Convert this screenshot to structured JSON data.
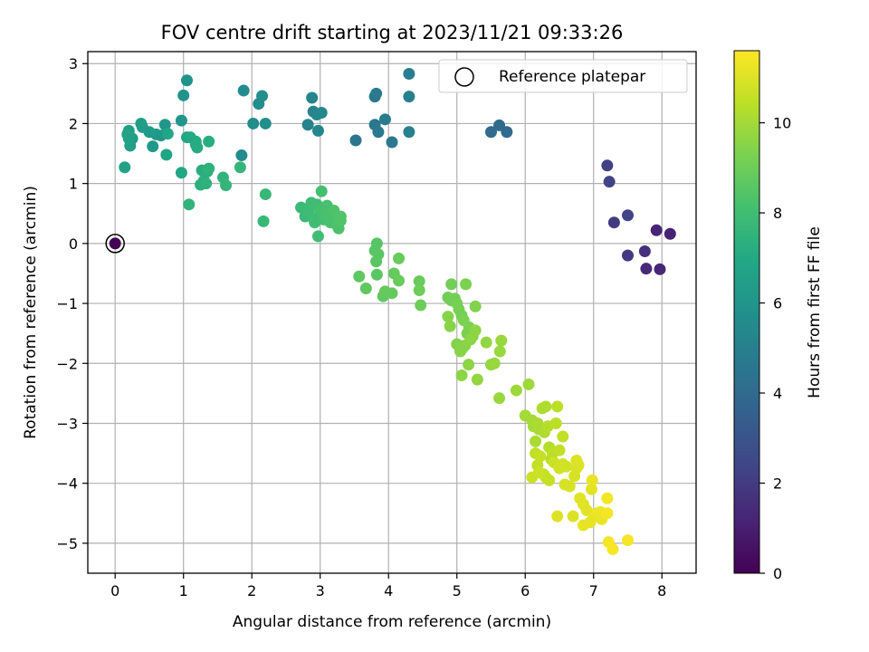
{
  "chart_data": {
    "type": "scatter",
    "title": "FOV centre drift starting at 2023/11/21 09:33:26",
    "xlabel": "Angular distance from reference (arcmin)",
    "ylabel": "Rotation from reference (arcmin)",
    "xlim": [
      -0.4,
      8.5
    ],
    "ylim": [
      -5.5,
      3.2
    ],
    "xticks": [
      0,
      1,
      2,
      3,
      4,
      5,
      6,
      7,
      8
    ],
    "xtick_labels": [
      "0",
      "1",
      "2",
      "3",
      "4",
      "5",
      "6",
      "7",
      "8"
    ],
    "yticks": [
      3,
      2,
      1,
      0,
      -1,
      -2,
      -3,
      -4,
      -5
    ],
    "ytick_labels": [
      "3",
      "2",
      "1",
      "0",
      "−1",
      "−2",
      "−3",
      "−4",
      "−5"
    ],
    "grid": true,
    "legend": {
      "label": "Reference platepar",
      "placement": "upper-right"
    },
    "reference_point": {
      "x": 0.0,
      "y": 0.0,
      "c": 0.0
    },
    "colorbar": {
      "label": "Hours from first FF file",
      "colormap": "viridis",
      "range": [
        0,
        11.6
      ],
      "ticks": [
        0,
        2,
        4,
        6,
        8,
        10
      ],
      "tick_labels": [
        "0",
        "2",
        "4",
        "6",
        "8",
        "10"
      ]
    },
    "points": [
      {
        "x": 7.2,
        "y": 1.3,
        "c": 2.2
      },
      {
        "x": 7.23,
        "y": 1.03,
        "c": 2.3
      },
      {
        "x": 7.3,
        "y": 0.35,
        "c": 2.0
      },
      {
        "x": 7.5,
        "y": 0.47,
        "c": 2.3
      },
      {
        "x": 7.5,
        "y": -0.2,
        "c": 1.9
      },
      {
        "x": 7.75,
        "y": -0.13,
        "c": 1.6
      },
      {
        "x": 7.77,
        "y": -0.42,
        "c": 1.4
      },
      {
        "x": 7.92,
        "y": 0.22,
        "c": 1.2
      },
      {
        "x": 7.97,
        "y": -0.43,
        "c": 1.3
      },
      {
        "x": 8.12,
        "y": 0.16,
        "c": 1.1
      },
      {
        "x": 5.5,
        "y": 1.86,
        "c": 4.0
      },
      {
        "x": 5.62,
        "y": 1.97,
        "c": 4.1
      },
      {
        "x": 5.73,
        "y": 1.86,
        "c": 4.0
      },
      {
        "x": 3.52,
        "y": 1.72,
        "c": 4.5
      },
      {
        "x": 3.8,
        "y": 2.45,
        "c": 4.6
      },
      {
        "x": 3.82,
        "y": 2.5,
        "c": 4.7
      },
      {
        "x": 3.8,
        "y": 1.98,
        "c": 4.6
      },
      {
        "x": 3.85,
        "y": 1.86,
        "c": 4.7
      },
      {
        "x": 3.95,
        "y": 2.07,
        "c": 4.8
      },
      {
        "x": 4.05,
        "y": 1.69,
        "c": 4.7
      },
      {
        "x": 4.3,
        "y": 2.83,
        "c": 4.9
      },
      {
        "x": 4.3,
        "y": 2.45,
        "c": 5.0
      },
      {
        "x": 4.3,
        "y": 1.86,
        "c": 5.0
      },
      {
        "x": 2.82,
        "y": 1.98,
        "c": 5.1
      },
      {
        "x": 2.88,
        "y": 2.43,
        "c": 5.2
      },
      {
        "x": 2.9,
        "y": 2.2,
        "c": 5.2
      },
      {
        "x": 2.95,
        "y": 2.15,
        "c": 5.3
      },
      {
        "x": 2.97,
        "y": 1.88,
        "c": 5.3
      },
      {
        "x": 3.02,
        "y": 2.18,
        "c": 5.4
      },
      {
        "x": 1.85,
        "y": 1.47,
        "c": 5.5
      },
      {
        "x": 1.88,
        "y": 2.55,
        "c": 5.5
      },
      {
        "x": 2.02,
        "y": 2.0,
        "c": 5.6
      },
      {
        "x": 2.1,
        "y": 2.33,
        "c": 5.6
      },
      {
        "x": 2.15,
        "y": 2.46,
        "c": 5.7
      },
      {
        "x": 2.2,
        "y": 2.0,
        "c": 5.7
      },
      {
        "x": 1.0,
        "y": 2.47,
        "c": 5.9
      },
      {
        "x": 1.05,
        "y": 2.72,
        "c": 5.9
      },
      {
        "x": 0.97,
        "y": 2.05,
        "c": 6.0
      },
      {
        "x": 0.73,
        "y": 1.98,
        "c": 6.1
      },
      {
        "x": 0.67,
        "y": 1.8,
        "c": 6.1
      },
      {
        "x": 0.6,
        "y": 1.82,
        "c": 6.2
      },
      {
        "x": 0.55,
        "y": 1.62,
        "c": 6.2
      },
      {
        "x": 0.5,
        "y": 1.86,
        "c": 6.3
      },
      {
        "x": 0.4,
        "y": 1.94,
        "c": 6.3
      },
      {
        "x": 0.38,
        "y": 2.0,
        "c": 6.4
      },
      {
        "x": 0.25,
        "y": 1.75,
        "c": 6.4
      },
      {
        "x": 0.22,
        "y": 1.63,
        "c": 6.5
      },
      {
        "x": 0.2,
        "y": 1.88,
        "c": 6.5
      },
      {
        "x": 0.18,
        "y": 1.82,
        "c": 6.6
      },
      {
        "x": 0.14,
        "y": 1.27,
        "c": 6.6
      },
      {
        "x": 0.2,
        "y": 1.75,
        "c": 6.7
      },
      {
        "x": 0.75,
        "y": 1.48,
        "c": 6.8
      },
      {
        "x": 0.77,
        "y": 1.83,
        "c": 6.8
      },
      {
        "x": 0.97,
        "y": 1.18,
        "c": 6.9
      },
      {
        "x": 1.05,
        "y": 1.77,
        "c": 6.9
      },
      {
        "x": 1.1,
        "y": 1.77,
        "c": 7.0
      },
      {
        "x": 1.18,
        "y": 1.7,
        "c": 7.0
      },
      {
        "x": 1.2,
        "y": 1.6,
        "c": 7.1
      },
      {
        "x": 1.18,
        "y": 1.65,
        "c": 7.1
      },
      {
        "x": 1.37,
        "y": 1.7,
        "c": 7.2
      },
      {
        "x": 1.27,
        "y": 1.22,
        "c": 7.2
      },
      {
        "x": 1.35,
        "y": 1.2,
        "c": 7.3
      },
      {
        "x": 1.3,
        "y": 1.05,
        "c": 7.3
      },
      {
        "x": 1.25,
        "y": 0.98,
        "c": 7.3
      },
      {
        "x": 1.33,
        "y": 1.0,
        "c": 7.4
      },
      {
        "x": 1.37,
        "y": 1.25,
        "c": 7.4
      },
      {
        "x": 1.08,
        "y": 0.65,
        "c": 7.5
      },
      {
        "x": 1.58,
        "y": 1.1,
        "c": 7.5
      },
      {
        "x": 1.62,
        "y": 0.97,
        "c": 7.6
      },
      {
        "x": 1.83,
        "y": 1.27,
        "c": 7.6
      },
      {
        "x": 2.2,
        "y": 0.82,
        "c": 7.7
      },
      {
        "x": 2.17,
        "y": 0.37,
        "c": 7.7
      },
      {
        "x": 2.72,
        "y": 0.6,
        "c": 7.8
      },
      {
        "x": 2.78,
        "y": 0.45,
        "c": 7.8
      },
      {
        "x": 2.83,
        "y": 0.55,
        "c": 7.9
      },
      {
        "x": 2.87,
        "y": 0.68,
        "c": 7.9
      },
      {
        "x": 2.9,
        "y": 0.42,
        "c": 7.9
      },
      {
        "x": 2.92,
        "y": 0.35,
        "c": 8.0
      },
      {
        "x": 2.95,
        "y": 0.65,
        "c": 8.0
      },
      {
        "x": 2.97,
        "y": 0.12,
        "c": 8.0
      },
      {
        "x": 3.0,
        "y": 0.55,
        "c": 8.1
      },
      {
        "x": 3.02,
        "y": 0.87,
        "c": 8.1
      },
      {
        "x": 3.05,
        "y": 0.4,
        "c": 8.1
      },
      {
        "x": 3.08,
        "y": 0.5,
        "c": 8.2
      },
      {
        "x": 3.1,
        "y": 0.63,
        "c": 8.2
      },
      {
        "x": 3.15,
        "y": 0.35,
        "c": 8.2
      },
      {
        "x": 3.18,
        "y": 0.45,
        "c": 8.2
      },
      {
        "x": 3.2,
        "y": 0.55,
        "c": 8.3
      },
      {
        "x": 3.25,
        "y": 0.3,
        "c": 8.3
      },
      {
        "x": 3.27,
        "y": 0.25,
        "c": 8.3
      },
      {
        "x": 3.3,
        "y": 0.45,
        "c": 8.4
      },
      {
        "x": 3.3,
        "y": 0.38,
        "c": 8.4
      },
      {
        "x": 3.83,
        "y": 0.0,
        "c": 8.5
      },
      {
        "x": 3.8,
        "y": -0.12,
        "c": 8.5
      },
      {
        "x": 3.85,
        "y": -0.18,
        "c": 8.6
      },
      {
        "x": 3.82,
        "y": -0.3,
        "c": 8.6
      },
      {
        "x": 3.83,
        "y": -0.52,
        "c": 8.6
      },
      {
        "x": 3.57,
        "y": -0.55,
        "c": 8.7
      },
      {
        "x": 3.67,
        "y": -0.75,
        "c": 8.7
      },
      {
        "x": 3.92,
        "y": -0.88,
        "c": 8.7
      },
      {
        "x": 3.95,
        "y": -0.8,
        "c": 8.8
      },
      {
        "x": 4.05,
        "y": -0.83,
        "c": 8.8
      },
      {
        "x": 4.08,
        "y": -0.5,
        "c": 8.8
      },
      {
        "x": 4.15,
        "y": -0.62,
        "c": 8.9
      },
      {
        "x": 4.15,
        "y": -0.25,
        "c": 8.9
      },
      {
        "x": 4.45,
        "y": -0.63,
        "c": 8.9
      },
      {
        "x": 4.45,
        "y": -0.78,
        "c": 9.0
      },
      {
        "x": 4.47,
        "y": -1.03,
        "c": 9.0
      },
      {
        "x": 4.92,
        "y": -0.68,
        "c": 9.1
      },
      {
        "x": 4.87,
        "y": -0.9,
        "c": 9.1
      },
      {
        "x": 4.92,
        "y": -0.95,
        "c": 9.1
      },
      {
        "x": 4.97,
        "y": -0.92,
        "c": 9.1
      },
      {
        "x": 5.0,
        "y": -1.0,
        "c": 9.2
      },
      {
        "x": 5.03,
        "y": -1.1,
        "c": 9.2
      },
      {
        "x": 5.07,
        "y": -1.2,
        "c": 9.2
      },
      {
        "x": 5.1,
        "y": -1.28,
        "c": 9.3
      },
      {
        "x": 5.13,
        "y": -0.68,
        "c": 9.3
      },
      {
        "x": 5.15,
        "y": -1.5,
        "c": 9.3
      },
      {
        "x": 5.18,
        "y": -1.4,
        "c": 9.3
      },
      {
        "x": 5.2,
        "y": -1.6,
        "c": 9.4
      },
      {
        "x": 5.23,
        "y": -1.55,
        "c": 9.4
      },
      {
        "x": 5.27,
        "y": -1.05,
        "c": 9.4
      },
      {
        "x": 5.0,
        "y": -1.68,
        "c": 9.4
      },
      {
        "x": 5.05,
        "y": -1.8,
        "c": 9.5
      },
      {
        "x": 5.08,
        "y": -1.75,
        "c": 9.5
      },
      {
        "x": 4.9,
        "y": -1.38,
        "c": 9.5
      },
      {
        "x": 4.87,
        "y": -1.22,
        "c": 9.5
      },
      {
        "x": 5.12,
        "y": -1.7,
        "c": 9.5
      },
      {
        "x": 5.2,
        "y": -1.6,
        "c": 9.6
      },
      {
        "x": 5.27,
        "y": -1.45,
        "c": 9.6
      },
      {
        "x": 5.17,
        "y": -2.02,
        "c": 9.6
      },
      {
        "x": 5.07,
        "y": -2.2,
        "c": 9.6
      },
      {
        "x": 5.3,
        "y": -2.27,
        "c": 9.7
      },
      {
        "x": 5.43,
        "y": -1.65,
        "c": 9.7
      },
      {
        "x": 5.5,
        "y": -2.02,
        "c": 9.7
      },
      {
        "x": 5.55,
        "y": -2.0,
        "c": 9.8
      },
      {
        "x": 5.63,
        "y": -1.8,
        "c": 9.8
      },
      {
        "x": 5.65,
        "y": -1.62,
        "c": 9.8
      },
      {
        "x": 5.62,
        "y": -2.58,
        "c": 9.8
      },
      {
        "x": 5.87,
        "y": -2.45,
        "c": 9.9
      },
      {
        "x": 6.05,
        "y": -2.35,
        "c": 9.9
      },
      {
        "x": 6.0,
        "y": -2.87,
        "c": 10.0
      },
      {
        "x": 6.1,
        "y": -2.95,
        "c": 10.0
      },
      {
        "x": 6.12,
        "y": -3.05,
        "c": 10.0
      },
      {
        "x": 6.15,
        "y": -3.3,
        "c": 10.1
      },
      {
        "x": 6.18,
        "y": -3.0,
        "c": 10.1
      },
      {
        "x": 6.2,
        "y": -3.1,
        "c": 10.1
      },
      {
        "x": 6.25,
        "y": -2.75,
        "c": 10.2
      },
      {
        "x": 6.28,
        "y": -3.15,
        "c": 10.2
      },
      {
        "x": 6.3,
        "y": -2.72,
        "c": 10.2
      },
      {
        "x": 6.33,
        "y": -3.05,
        "c": 10.3
      },
      {
        "x": 6.35,
        "y": -3.4,
        "c": 10.3
      },
      {
        "x": 6.38,
        "y": -3.6,
        "c": 10.3
      },
      {
        "x": 6.4,
        "y": -3.5,
        "c": 10.4
      },
      {
        "x": 6.45,
        "y": -3.0,
        "c": 10.4
      },
      {
        "x": 6.47,
        "y": -2.72,
        "c": 10.4
      },
      {
        "x": 6.5,
        "y": -3.45,
        "c": 10.5
      },
      {
        "x": 6.55,
        "y": -3.22,
        "c": 10.5
      },
      {
        "x": 6.15,
        "y": -3.5,
        "c": 10.5
      },
      {
        "x": 6.18,
        "y": -3.7,
        "c": 10.5
      },
      {
        "x": 6.22,
        "y": -3.55,
        "c": 10.6
      },
      {
        "x": 6.27,
        "y": -3.85,
        "c": 10.6
      },
      {
        "x": 6.3,
        "y": -3.9,
        "c": 10.6
      },
      {
        "x": 6.35,
        "y": -3.95,
        "c": 10.6
      },
      {
        "x": 6.1,
        "y": -3.9,
        "c": 10.7
      },
      {
        "x": 6.2,
        "y": -3.82,
        "c": 10.7
      },
      {
        "x": 6.42,
        "y": -3.65,
        "c": 10.7
      },
      {
        "x": 6.5,
        "y": -3.75,
        "c": 10.8
      },
      {
        "x": 6.55,
        "y": -3.68,
        "c": 10.8
      },
      {
        "x": 6.6,
        "y": -3.72,
        "c": 10.8
      },
      {
        "x": 6.58,
        "y": -4.02,
        "c": 10.9
      },
      {
        "x": 6.65,
        "y": -4.05,
        "c": 10.9
      },
      {
        "x": 6.72,
        "y": -3.88,
        "c": 10.9
      },
      {
        "x": 6.75,
        "y": -3.75,
        "c": 10.9
      },
      {
        "x": 6.78,
        "y": -3.7,
        "c": 11.0
      },
      {
        "x": 6.75,
        "y": -3.62,
        "c": 11.0
      },
      {
        "x": 6.47,
        "y": -4.55,
        "c": 11.0
      },
      {
        "x": 6.7,
        "y": -4.55,
        "c": 11.0
      },
      {
        "x": 6.8,
        "y": -4.25,
        "c": 11.1
      },
      {
        "x": 6.85,
        "y": -4.35,
        "c": 11.1
      },
      {
        "x": 6.9,
        "y": -4.45,
        "c": 11.1
      },
      {
        "x": 6.97,
        "y": -4.1,
        "c": 11.1
      },
      {
        "x": 6.98,
        "y": -3.95,
        "c": 11.2
      },
      {
        "x": 6.85,
        "y": -4.7,
        "c": 11.2
      },
      {
        "x": 6.95,
        "y": -4.65,
        "c": 11.2
      },
      {
        "x": 7.0,
        "y": -4.55,
        "c": 11.2
      },
      {
        "x": 7.05,
        "y": -4.5,
        "c": 11.3
      },
      {
        "x": 7.1,
        "y": -4.48,
        "c": 11.3
      },
      {
        "x": 7.12,
        "y": -4.6,
        "c": 11.3
      },
      {
        "x": 7.2,
        "y": -4.25,
        "c": 11.4
      },
      {
        "x": 7.2,
        "y": -4.5,
        "c": 11.4
      },
      {
        "x": 7.22,
        "y": -4.98,
        "c": 11.4
      },
      {
        "x": 7.28,
        "y": -5.1,
        "c": 11.5
      },
      {
        "x": 7.5,
        "y": -4.95,
        "c": 11.5
      }
    ]
  }
}
